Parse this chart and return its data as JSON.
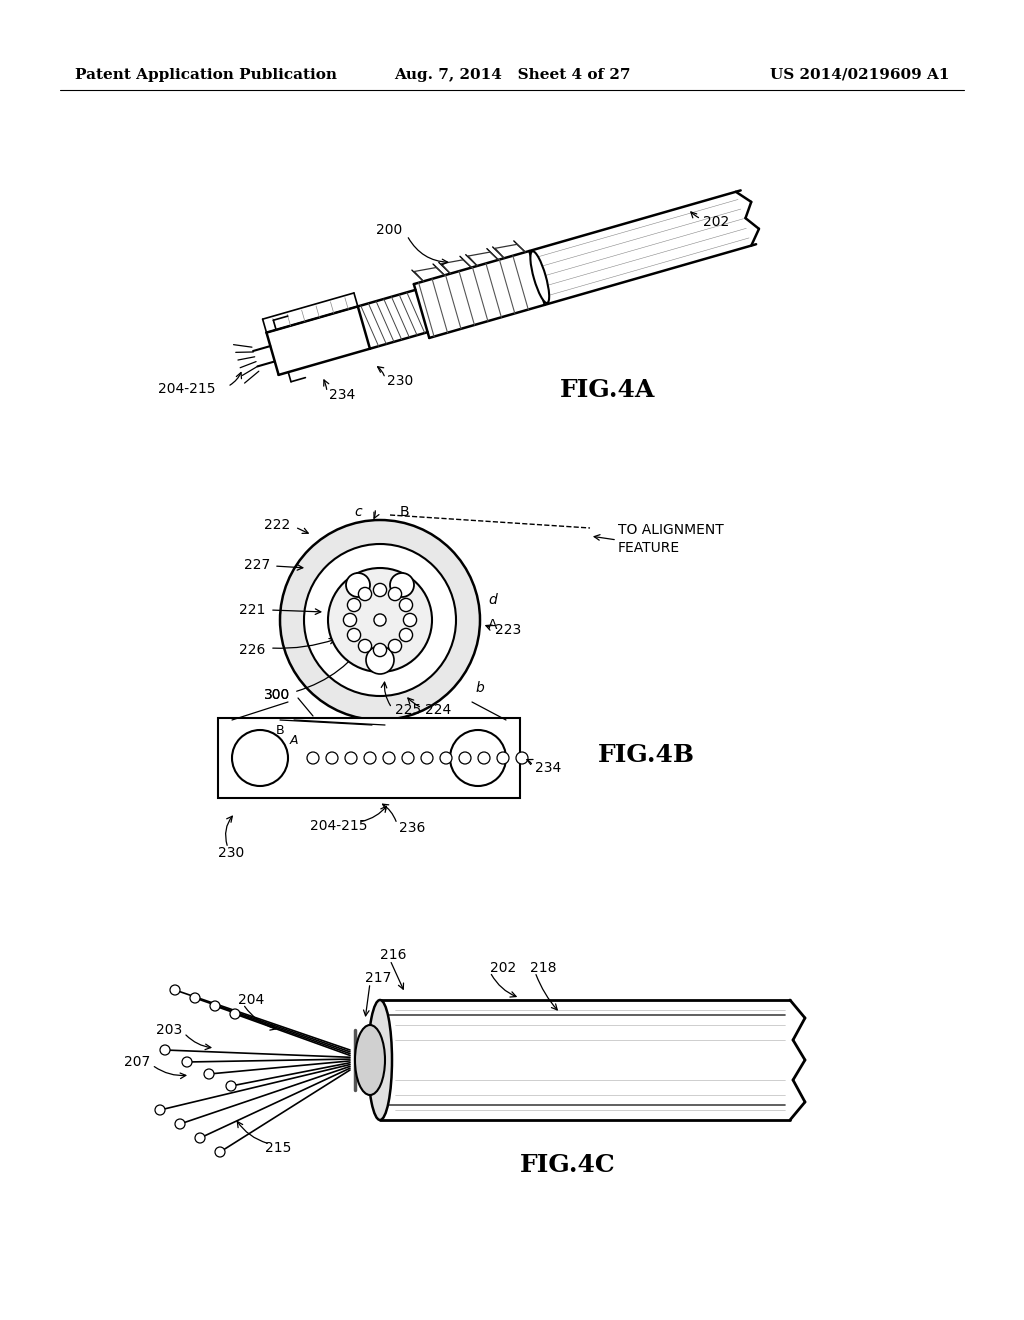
{
  "bg_color": "#ffffff",
  "header_left": "Patent Application Publication",
  "header_center": "Aug. 7, 2014   Sheet 4 of 27",
  "header_right": "US 2014/0219609 A1",
  "fig4a_label": "FIG.4A",
  "fig4b_label": "FIG.4B",
  "fig4c_label": "FIG.4C",
  "label_fontsize": 18,
  "header_fontsize": 11,
  "ref_fontsize": 10
}
